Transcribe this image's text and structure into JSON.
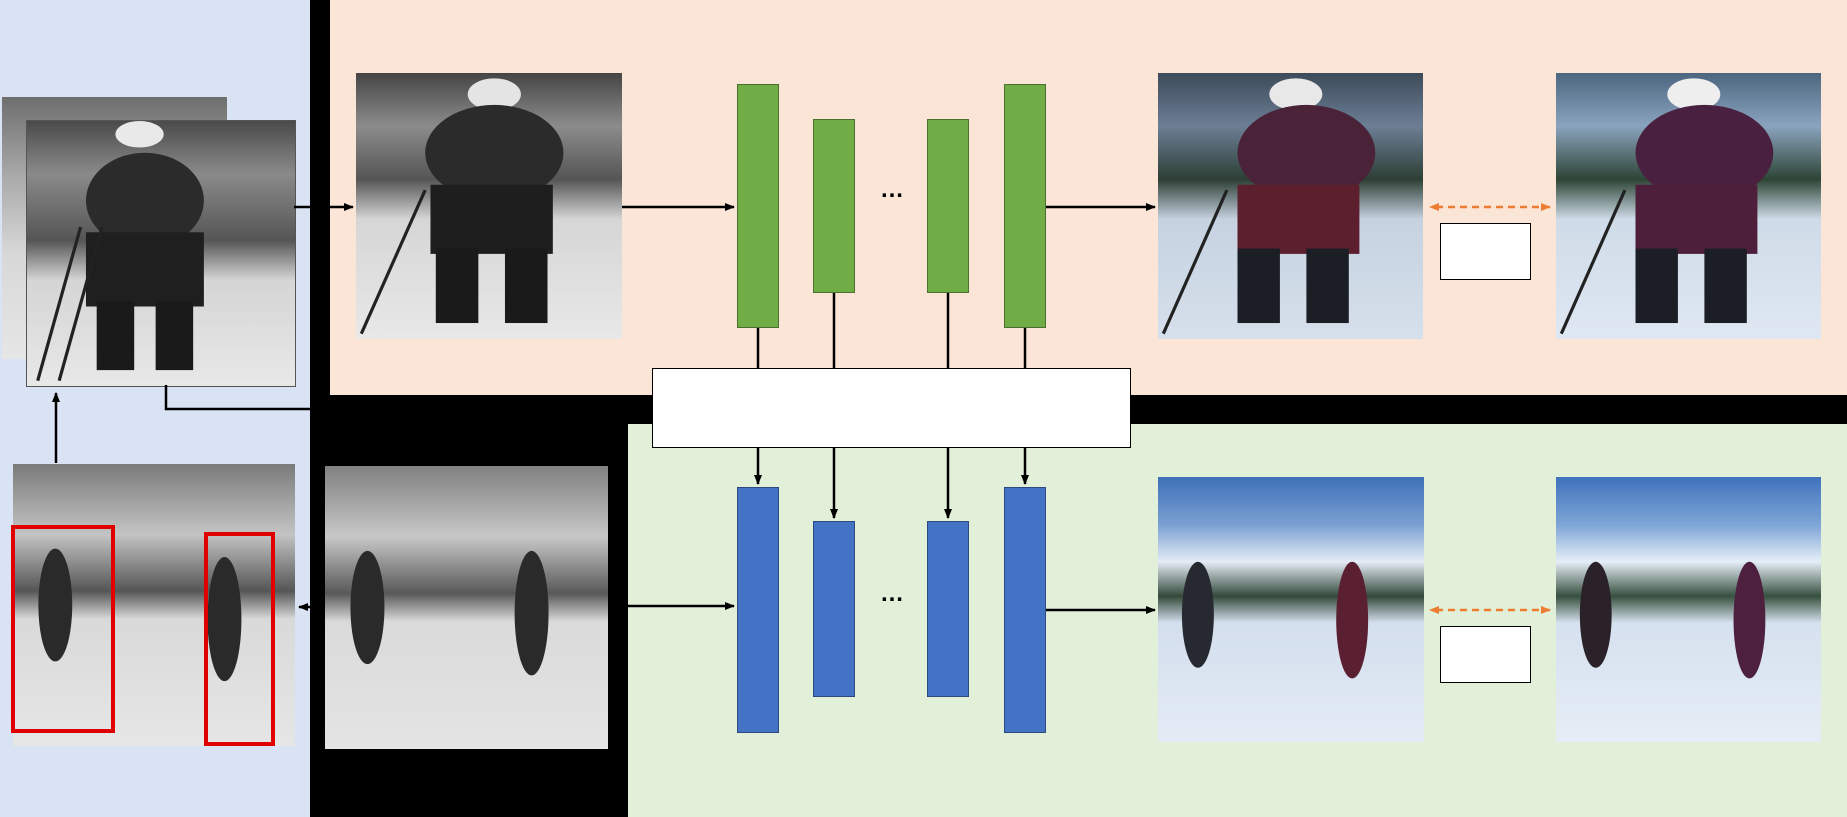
{
  "colors": {
    "left_panel": "#dae3f3",
    "top_panel": "#fbe5d6",
    "bottom_panel": "#e2f0d9",
    "top_network": "#70ad47",
    "bottom_network": "#4472c4",
    "compare_arrow": "#ed7d31",
    "bounding_box": "#e00000"
  },
  "top_branch": {
    "ellipsis": "…"
  },
  "bottom_branch": {
    "ellipsis": "…"
  },
  "fusion_box": {
    "label": ""
  },
  "top_loss_box": {
    "label": ""
  },
  "bottom_loss_box": {
    "label": ""
  }
}
